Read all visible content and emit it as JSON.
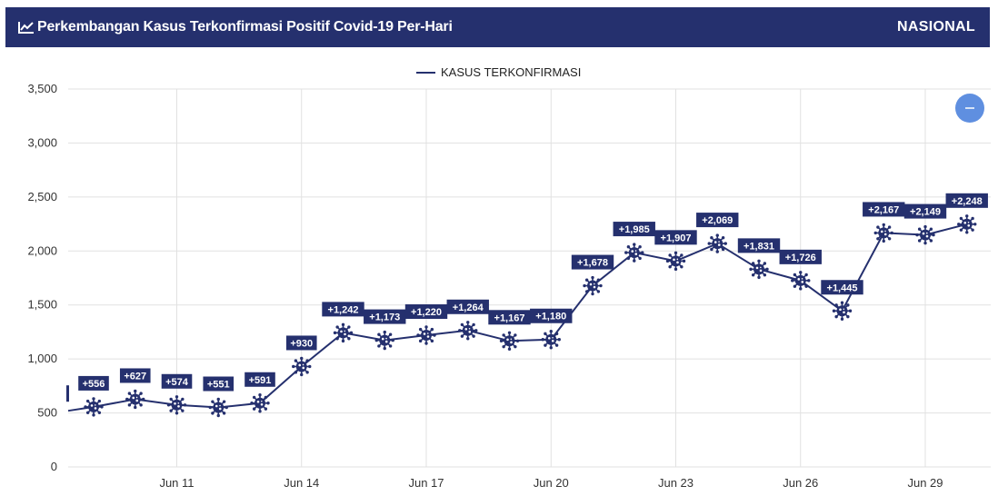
{
  "header": {
    "title": "Perkembangan Kasus Terkonfirmasi Positif Covid-19 Per-Hari",
    "region": "NASIONAL",
    "title_icon": "line-chart-icon"
  },
  "colors": {
    "header_bg": "#25306e",
    "line": "#25306e",
    "label_bg": "#25306e",
    "button": "#5f8fe0",
    "grid": "#e1e1e1"
  },
  "chart_data": {
    "type": "line",
    "title": "Perkembangan Kasus Terkonfirmasi Positif Covid-19 Per-Hari",
    "legend": "top-center",
    "grid": true,
    "ylim": [
      0,
      3500
    ],
    "yticks": [
      "0",
      "500",
      "1,000",
      "1,500",
      "2,000",
      "2,500",
      "3,000",
      "3,500"
    ],
    "xticks": [
      "Jun 11",
      "Jun 14",
      "Jun 17",
      "Jun 20",
      "Jun 23",
      "Jun 26",
      "Jun 29"
    ],
    "x": [
      "Jun 9",
      "Jun 10",
      "Jun 11",
      "Jun 12",
      "Jun 13",
      "Jun 14",
      "Jun 15",
      "Jun 16",
      "Jun 17",
      "Jun 18",
      "Jun 19",
      "Jun 20",
      "Jun 21",
      "Jun 22",
      "Jun 23",
      "Jun 24",
      "Jun 25",
      "Jun 26",
      "Jun 27",
      "Jun 28",
      "Jun 29",
      "Jun 30"
    ],
    "series": [
      {
        "name": "KASUS TERKONFIRMASI",
        "values": [
          556,
          627,
          574,
          551,
          591,
          930,
          1242,
          1173,
          1220,
          1264,
          1167,
          1180,
          1678,
          1985,
          1907,
          2069,
          1831,
          1726,
          1445,
          2167,
          2149,
          2248
        ],
        "labels": [
          "+556",
          "+627",
          "+574",
          "+551",
          "+591",
          "+930",
          "+1,242",
          "+1,173",
          "+1,220",
          "+1,264",
          "+1,167",
          "+1,180",
          "+1,678",
          "+1,985",
          "+1,907",
          "+2,069",
          "+1,831",
          "+1,726",
          "+1,445",
          "+2,167",
          "+2,149",
          "+2,248"
        ]
      }
    ],
    "lead_in_value": 520,
    "marker_icon": "virus-icon",
    "toggle_button_icon": "minus-icon"
  }
}
